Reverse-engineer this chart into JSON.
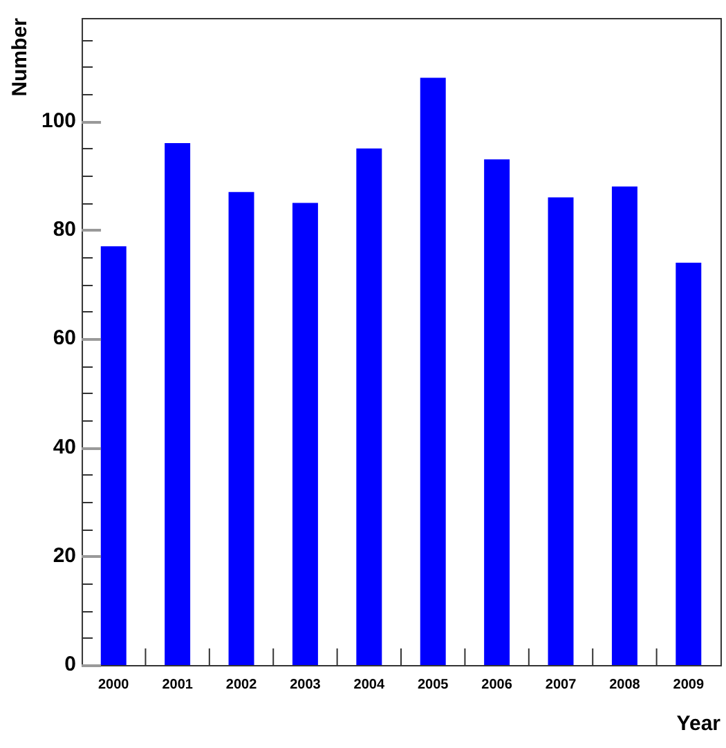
{
  "chart_data": {
    "type": "bar",
    "xlabel": "Year",
    "ylabel": "Number",
    "categories": [
      "2000",
      "2001",
      "2002",
      "2003",
      "2004",
      "2005",
      "2006",
      "2007",
      "2008",
      "2009"
    ],
    "values": [
      77,
      96,
      87,
      85,
      95,
      108,
      93,
      86,
      88,
      74
    ],
    "color": "#0000ff",
    "ylim": [
      0,
      119
    ],
    "yticks": [
      0,
      {
        "value": 5,
        "label": null
      },
      {
        "value": 10,
        "label": null
      },
      {
        "value": 15,
        "label": null
      },
      20,
      {
        "value": 25,
        "label": null
      },
      {
        "value": 30,
        "label": null
      },
      {
        "value": 35,
        "label": null
      },
      40,
      {
        "value": 45,
        "label": null
      },
      {
        "value": 50,
        "label": null
      },
      {
        "value": 55,
        "label": null
      },
      60,
      {
        "value": 65,
        "label": null
      },
      {
        "value": 70,
        "label": null
      },
      {
        "value": 75,
        "label": null
      },
      80,
      {
        "value": 85,
        "label": null
      },
      {
        "value": 90,
        "label": null
      },
      {
        "value": 95,
        "label": null
      },
      100,
      {
        "value": 105,
        "label": null
      },
      {
        "value": 110,
        "label": null
      },
      {
        "value": 115,
        "label": null
      }
    ],
    "grid": false,
    "legend": false
  }
}
